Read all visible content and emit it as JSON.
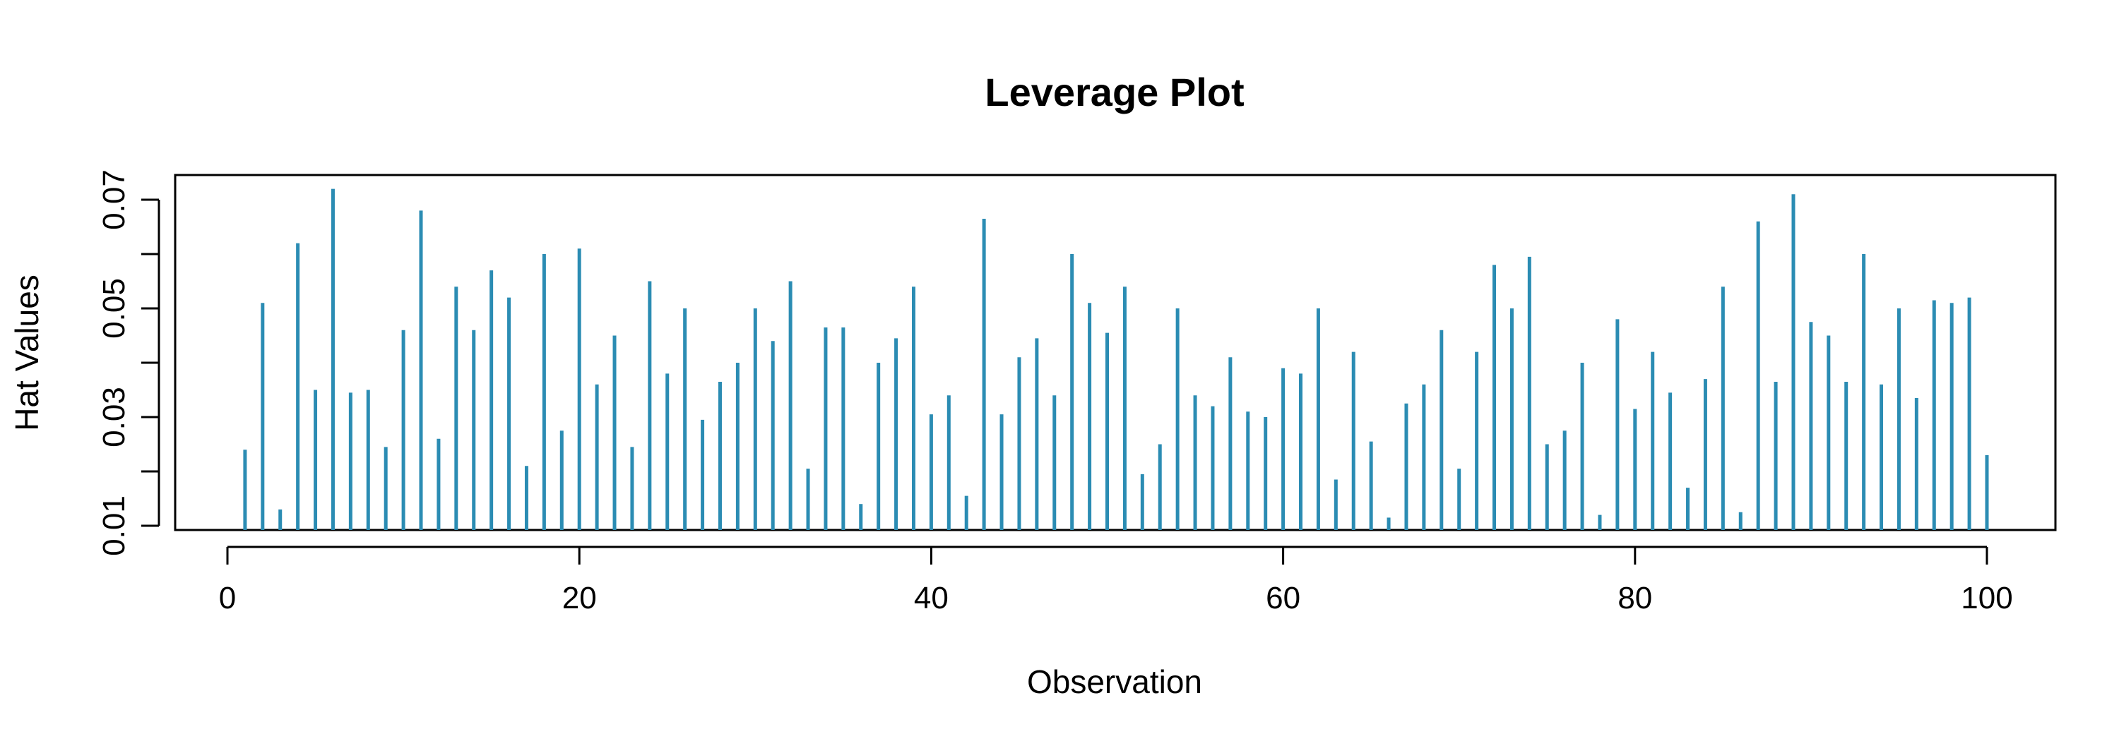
{
  "chart_data": {
    "type": "bar",
    "title": "Leverage Plot",
    "xlabel": "Observation",
    "ylabel": "Hat Values",
    "xlim": [
      0,
      100
    ],
    "ylim": [
      0.01,
      0.07
    ],
    "xticks": [
      0,
      20,
      40,
      60,
      80,
      100
    ],
    "yticks": [
      0.01,
      0.02,
      0.03,
      0.04,
      0.05,
      0.06,
      0.07
    ],
    "ytick_labels": [
      "0.01",
      "",
      "0.03",
      "",
      "0.05",
      "",
      "0.07"
    ],
    "grid": false,
    "color": "#2b8cb3",
    "x": [
      1,
      2,
      3,
      4,
      5,
      6,
      7,
      8,
      9,
      10,
      11,
      12,
      13,
      14,
      15,
      16,
      17,
      18,
      19,
      20,
      21,
      22,
      23,
      24,
      25,
      26,
      27,
      28,
      29,
      30,
      31,
      32,
      33,
      34,
      35,
      36,
      37,
      38,
      39,
      40,
      41,
      42,
      43,
      44,
      45,
      46,
      47,
      48,
      49,
      50,
      51,
      52,
      53,
      54,
      55,
      56,
      57,
      58,
      59,
      60,
      61,
      62,
      63,
      64,
      65,
      66,
      67,
      68,
      69,
      70,
      71,
      72,
      73,
      74,
      75,
      76,
      77,
      78,
      79,
      80,
      81,
      82,
      83,
      84,
      85,
      86,
      87,
      88,
      89,
      90,
      91,
      92,
      93,
      94,
      95,
      96,
      97,
      98,
      99,
      100
    ],
    "values": [
      0.024,
      0.051,
      0.013,
      0.062,
      0.035,
      0.072,
      0.0345,
      0.035,
      0.0245,
      0.046,
      0.068,
      0.026,
      0.054,
      0.046,
      0.057,
      0.052,
      0.021,
      0.06,
      0.0275,
      0.061,
      0.036,
      0.045,
      0.0245,
      0.055,
      0.038,
      0.05,
      0.0295,
      0.0365,
      0.04,
      0.05,
      0.044,
      0.055,
      0.0205,
      0.0465,
      0.0465,
      0.014,
      0.04,
      0.0445,
      0.054,
      0.0305,
      0.034,
      0.0155,
      0.0665,
      0.0305,
      0.041,
      0.0445,
      0.034,
      0.06,
      0.051,
      0.0455,
      0.054,
      0.0195,
      0.025,
      0.05,
      0.034,
      0.032,
      0.041,
      0.031,
      0.03,
      0.039,
      0.038,
      0.05,
      0.0185,
      0.042,
      0.0255,
      0.0115,
      0.0325,
      0.036,
      0.046,
      0.0205,
      0.042,
      0.058,
      0.05,
      0.0595,
      0.025,
      0.0275,
      0.04,
      0.012,
      0.048,
      0.0315,
      0.042,
      0.0345,
      0.017,
      0.037,
      0.054,
      0.0125,
      0.066,
      0.0365,
      0.071,
      0.0475,
      0.045,
      0.0365,
      0.06,
      0.036,
      0.05,
      0.0335,
      0.0515,
      0.051,
      0.052,
      0.023
    ]
  }
}
